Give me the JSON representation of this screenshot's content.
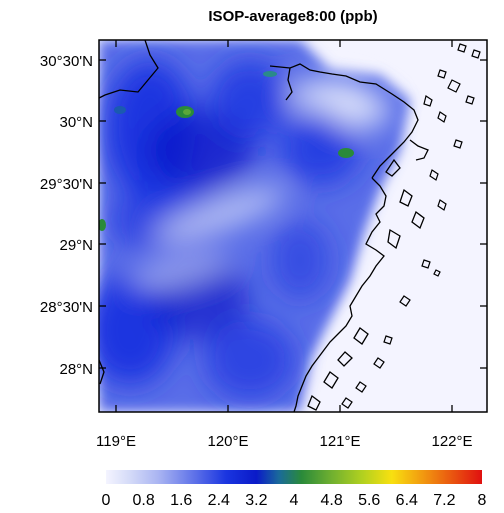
{
  "title": "ISOP-average8:00 (ppb)",
  "map": {
    "lat_ticks": [
      "30°30'N",
      "30°N",
      "29°30'N",
      "29°N",
      "28°30'N",
      "28°N"
    ],
    "lon_ticks": [
      "119°E",
      "120°E",
      "121°E",
      "122°E"
    ]
  },
  "colorbar": {
    "labels": [
      "0",
      "0.8",
      "1.6",
      "2.4",
      "3.2",
      "4",
      "4.8",
      "5.6",
      "6.4",
      "7.2",
      "8"
    ],
    "colors": {
      "low": "#f4f4ff",
      "light_blue": "#a9b4f2",
      "blue": "#1a35e0",
      "dark_blue": "#0a1ac8",
      "green": "#2a8a3a",
      "yellow_green": "#b0d020",
      "yellow": "#f8e010",
      "orange": "#f08a10",
      "red": "#e01010"
    }
  }
}
